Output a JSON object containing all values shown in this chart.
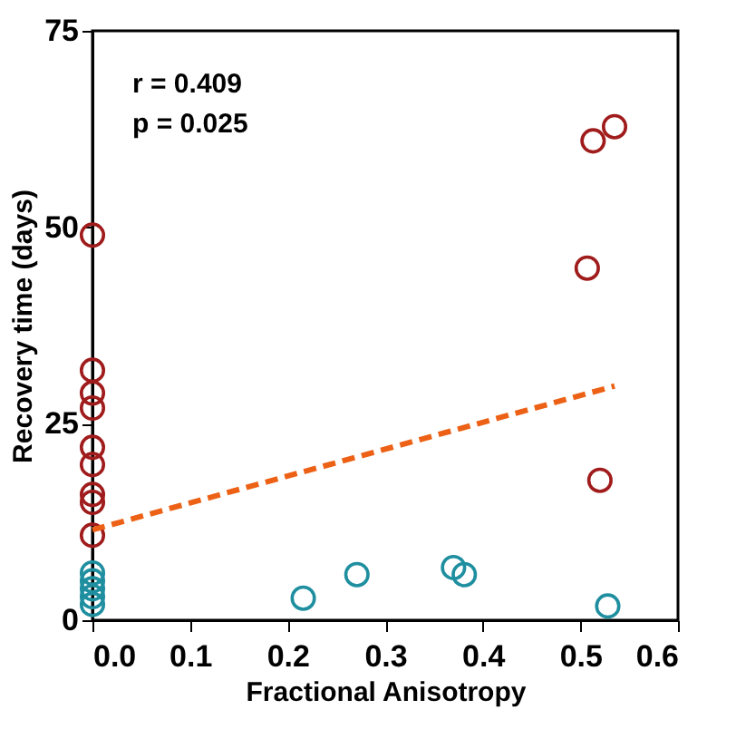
{
  "chart_data": {
    "type": "scatter",
    "xlabel": "Fractional Anisotropy",
    "ylabel": "Recovery time (days)",
    "annotations": [
      "r = 0.409",
      "p = 0.025"
    ],
    "xlim": [
      0,
      0.6
    ],
    "xticks": [
      {
        "value": 0,
        "label": "0.0"
      },
      {
        "value": 0.1,
        "label": "0.1"
      },
      {
        "value": 0.2,
        "label": "0.2"
      },
      {
        "value": 0.3,
        "label": "0.3"
      },
      {
        "value": 0.4,
        "label": "0.4"
      },
      {
        "value": 0.5,
        "label": "0.5"
      },
      {
        "value": 0.6,
        "label": "0.6"
      }
    ],
    "ylim": [
      0,
      75
    ],
    "yticks": [
      0,
      25,
      50,
      75
    ],
    "grid": false,
    "marker": "circle",
    "series": [
      {
        "color": "#a01c1c",
        "x": [
          0,
          0,
          0,
          0,
          0,
          0,
          0,
          0,
          0,
          0.507,
          0.513,
          0.535,
          0.52
        ],
        "values": [
          49,
          31.8,
          28.9,
          27,
          22,
          19.8,
          16,
          15,
          10.8,
          44.8,
          61,
          62.8,
          17.8
        ]
      },
      {
        "color": "#1f8fa0",
        "x": [
          0,
          0,
          0,
          0,
          0,
          0.216,
          0.271,
          0.37,
          0.381,
          0.528
        ],
        "values": [
          6,
          5,
          4,
          3,
          2,
          2.8,
          5.8,
          6.7,
          5.8,
          1.8
        ]
      },
      {
        "type": "line",
        "line_style": "dashed",
        "marker": "none",
        "color": "#ec6115",
        "x": [
          0,
          0.535
        ],
        "values": [
          11.5,
          29.8
        ]
      }
    ]
  }
}
